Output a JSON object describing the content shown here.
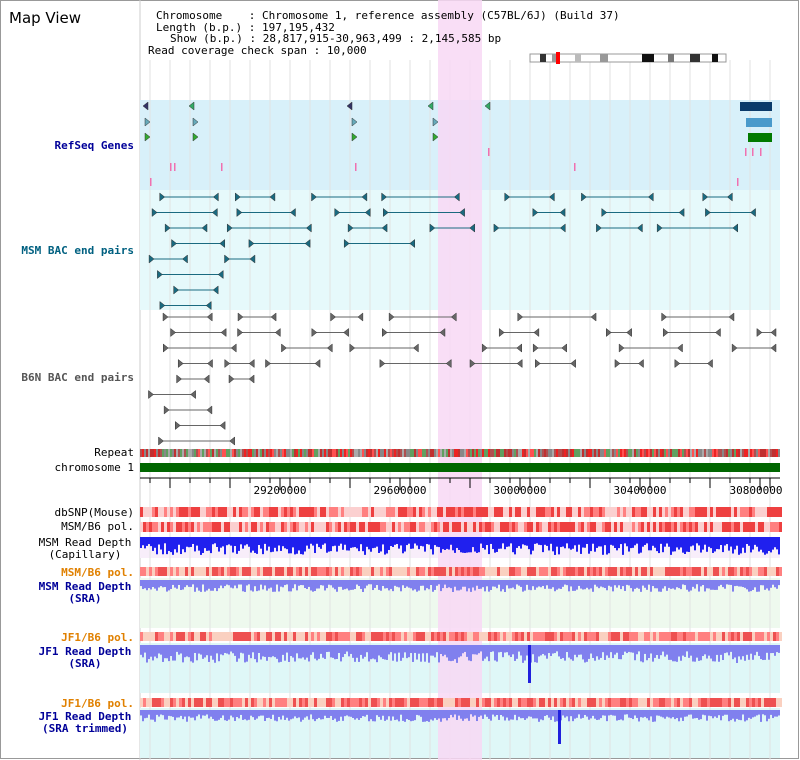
{
  "title": "Map View",
  "header": {
    "chromosome_key": "Chromosome",
    "chromosome_val": "Chromosome 1, reference assembly (C57BL/6J) (Build 37)",
    "length_key": "Length (b.p.)",
    "length_val": "197,195,432",
    "show_key": "Show (b.p.)",
    "show_val": "28,817,915-30,963,499 : 2,145,585 bp",
    "coverage_key": "Read coverage check span",
    "coverage_val": "10,000"
  },
  "tracks": {
    "refseq": "RefSeq Genes",
    "msm_bac": "MSM BAC end pairs",
    "b6n_bac": "B6N BAC end pairs",
    "repeat": "Repeat",
    "chromosome": "chromosome 1",
    "dbsnp": "dbSNP(Mouse)",
    "msm_b6_pol": "MSM/B6 pol.",
    "msm_depth_cap_1": "MSM Read Depth",
    "msm_depth_cap_2": "(Capillary)",
    "msm_b6_pol_2": "MSM/B6 pol.",
    "msm_depth_sra_1": "MSM Read Depth",
    "msm_depth_sra_2": "(SRA)",
    "jf1_b6_pol": "JF1/B6 pol.",
    "jf1_depth_sra_1": "JF1 Read Depth",
    "jf1_depth_sra_2": "(SRA)",
    "jf1_b6_pol_2": "JF1/B6 pol.",
    "jf1_depth_trim_1": "JF1 Read Depth",
    "jf1_depth_trim_2": "(SRA trimmed)"
  },
  "axis": {
    "ticks": [
      "29200000",
      "29600000",
      "30000000",
      "30400000",
      "30800000"
    ]
  },
  "colors": {
    "refseq_bg": "#d8f0fa",
    "bac_bg": "#e6f9fb",
    "highlight": "#f8d8f4",
    "chromosome": "#006600",
    "label_blue": "#000099",
    "label_teal": "#006080",
    "label_orange": "#e08000",
    "depth_blue": "#2020ee",
    "depth_light": "#8080ee"
  }
}
